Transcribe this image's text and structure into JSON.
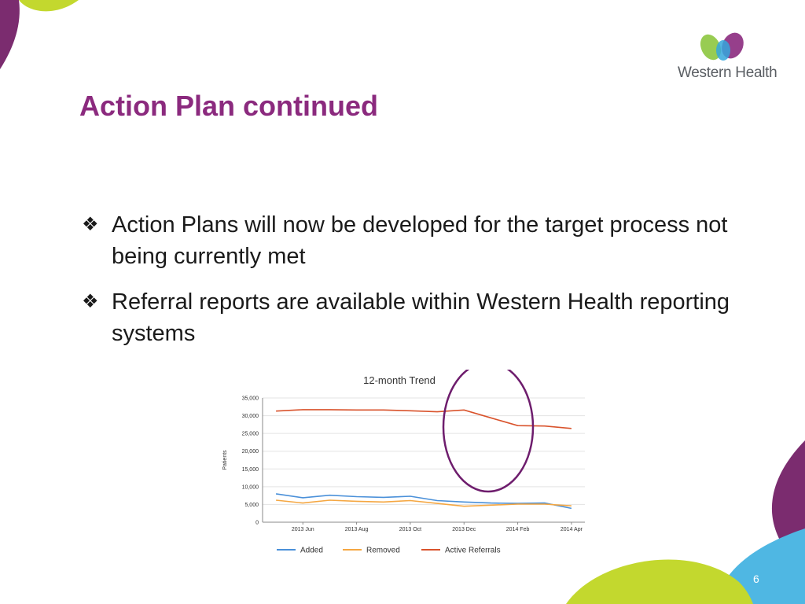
{
  "slide": {
    "title": "Action Plan continued",
    "page_number": "6",
    "bullets": [
      "Action Plans will now be developed for the target process not being currently met",
      "Referral reports are available within Western Health reporting systems"
    ]
  },
  "logo": {
    "text": "Western Health",
    "colors": [
      "#8dc63f",
      "#35a7dc",
      "#8b2a7e"
    ]
  },
  "theme": {
    "title_color": "#8b2a7e",
    "accent_purple": "#7b2c6f",
    "accent_green": "#c3d82e",
    "accent_blue": "#4fb7e3",
    "highlight_circle_color": "#6e1d6d"
  },
  "chart_data": {
    "type": "line",
    "title": "12-month Trend",
    "ylabel": "Patients",
    "xlabel": "",
    "ylim": [
      0,
      35000
    ],
    "yticks": [
      "0",
      "5,000",
      "10,000",
      "15,000",
      "20,000",
      "25,000",
      "30,000",
      "35,000"
    ],
    "x": [
      "2013 May",
      "2013 Jun",
      "2013 Jul",
      "2013 Aug",
      "2013 Sep",
      "2013 Oct",
      "2013 Nov",
      "2013 Dec",
      "2014 Jan",
      "2014 Feb",
      "2014 Mar",
      "2014 Apr"
    ],
    "xtick_labels": [
      "2013 Jun",
      "2013 Aug",
      "2013 Oct",
      "2013 Dec",
      "2014 Feb",
      "2014 Apr"
    ],
    "grid": true,
    "legend_position": "bottom",
    "series": [
      {
        "name": "Added",
        "color": "#4a90d9",
        "values": [
          8000,
          6900,
          7600,
          7200,
          7000,
          7300,
          6100,
          5700,
          5400,
          5300,
          5400,
          3900
        ]
      },
      {
        "name": "Removed",
        "color": "#f5a742",
        "values": [
          6200,
          5400,
          6200,
          5900,
          5700,
          6100,
          5300,
          4500,
          4800,
          5100,
          5100,
          4600
        ]
      },
      {
        "name": "Active Referrals",
        "color": "#d9532c",
        "values": [
          31300,
          31700,
          31700,
          31600,
          31600,
          31400,
          31100,
          31600,
          29400,
          27200,
          27100,
          26400
        ]
      }
    ]
  }
}
